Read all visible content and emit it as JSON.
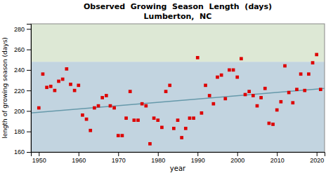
{
  "chart_data": {
    "type": "scatter",
    "title": "Observed  Growing  Season  Length  (days)",
    "subtitle": "Lumberton,  NC",
    "xlabel": "year",
    "ylabel": "length of growing season (days)",
    "xlim": [
      1948,
      2022
    ],
    "ylim": [
      160,
      285
    ],
    "xticks": [
      1950,
      1960,
      1970,
      1980,
      1990,
      2000,
      2010,
      2020
    ],
    "yticks": [
      160,
      180,
      200,
      220,
      240,
      260,
      280
    ],
    "grid": false,
    "bands": [
      {
        "from": 160,
        "to": 248,
        "color": "#c2d4e0"
      },
      {
        "from": 248,
        "to": 285,
        "color": "#dde8d5"
      }
    ],
    "series": [
      {
        "type": "line",
        "color": "#6699aa",
        "x": [
          1948,
          2022
        ],
        "values": [
          198.0,
          222.0
        ]
      },
      {
        "type": "scatter",
        "color": "#dd0000",
        "marker": "square",
        "x": [
          1950,
          1951,
          1952,
          1953,
          1954,
          1955,
          1956,
          1957,
          1958,
          1959,
          1960,
          1961,
          1962,
          1963,
          1964,
          1965,
          1966,
          1967,
          1968,
          1969,
          1970,
          1971,
          1972,
          1973,
          1974,
          1975,
          1976,
          1977,
          1978,
          1979,
          1980,
          1981,
          1982,
          1983,
          1984,
          1985,
          1986,
          1987,
          1988,
          1989,
          1990,
          1991,
          1992,
          1993,
          1994,
          1995,
          1996,
          1997,
          1998,
          1999,
          2000,
          2001,
          2002,
          2003,
          2004,
          2005,
          2006,
          2007,
          2008,
          2009,
          2010,
          2011,
          2012,
          2013,
          2014,
          2015,
          2016,
          2017,
          2018,
          2019,
          2020,
          2021
        ],
        "values": [
          203,
          236,
          223,
          224,
          220,
          229,
          231,
          241,
          226,
          220,
          225,
          196,
          192,
          181,
          203,
          205,
          213,
          215,
          205,
          203,
          176,
          176,
          193,
          219,
          191,
          191,
          207,
          205,
          168,
          193,
          191,
          184,
          219,
          225,
          183,
          191,
          174,
          183,
          193,
          193,
          252,
          198,
          225,
          215,
          207,
          233,
          235,
          212,
          240,
          240,
          233,
          251,
          216,
          219,
          215,
          205,
          213,
          222,
          188,
          187,
          201,
          209,
          244,
          218,
          208,
          221,
          236,
          220,
          236,
          247,
          255,
          221
        ]
      }
    ]
  }
}
